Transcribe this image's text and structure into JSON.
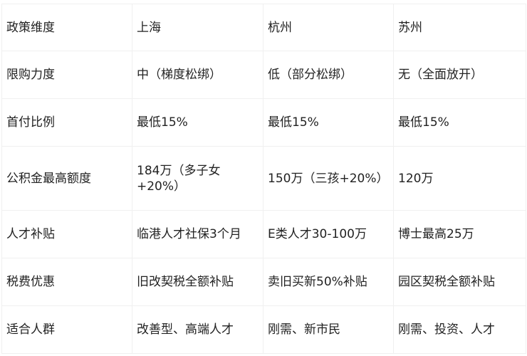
{
  "table": {
    "header": [
      "政策维度",
      "上海",
      "杭州",
      "苏州"
    ],
    "rows": [
      [
        "限购力度",
        "中（梯度松绑）",
        "低（部分松绑）",
        "无（全面放开）"
      ],
      [
        "首付比例",
        "最低15%",
        "最低15%",
        "最低15%"
      ],
      [
        "公积金最高额度",
        "184万（多子女+20%）",
        "150万（三孩+20%）",
        "120万"
      ],
      [
        "人才补贴",
        "临港人才社保3个月",
        "E类人才30-100万",
        "博士最高25万"
      ],
      [
        "税费优惠",
        "旧改契税全额补贴",
        "卖旧买新50%补贴",
        "园区契税全额补贴"
      ],
      [
        "适合人群",
        "改善型、高端人才",
        "刚需、新市民",
        "刚需、投资、人才"
      ]
    ]
  }
}
